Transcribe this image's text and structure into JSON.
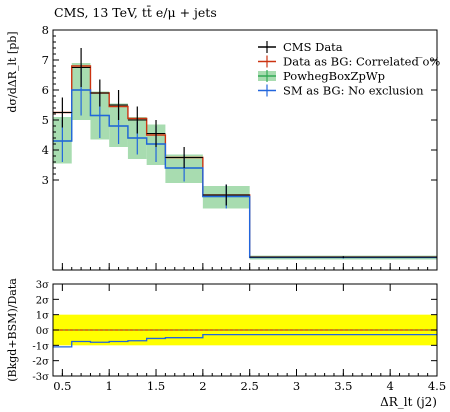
{
  "title": "CMS, 13 TeV, tt̄ e/μ + jets",
  "ylabel": "dσ/dΔR_lt [pb]",
  "ratio_ylabel": "(Bkgd+BSM)/Data",
  "xlabel": "ΔR_lt (j2)",
  "colors": {
    "data": "#000000",
    "correlated": "#cc3311",
    "powheg": "#33aa55",
    "powheg_band": "#a8dcb0",
    "sm": "#2266dd",
    "ratio_band": "#ffff00"
  },
  "chart_data": {
    "type": "line",
    "title": "CMS, 13 TeV, tt̄ e/μ + jets",
    "xlabel": "ΔR_lt (j2)",
    "ylabel": "dσ/dΔR_lt [pb]",
    "xlim": [
      0.4,
      4.5
    ],
    "ylim": [
      0,
      8
    ],
    "ratio_ylim": [
      -3,
      3
    ],
    "grid": false,
    "legend_position": "top-right",
    "bin_edges": [
      0.4,
      0.6,
      0.8,
      1.0,
      1.2,
      1.4,
      1.6,
      2.0,
      2.5,
      4.5
    ],
    "x_ticks": [
      "0.5",
      "1",
      "1.5",
      "2",
      "2.5",
      "3",
      "3.5",
      "4",
      "4.5"
    ],
    "y_ticks": [
      "3",
      "4",
      "5",
      "6",
      "7",
      "8"
    ],
    "ratio_ticks": [
      "3σ",
      "2σ",
      "1σ",
      "0σ",
      "-1σ",
      "-2σ",
      "-3σ"
    ],
    "series": [
      {
        "name": "CMS Data",
        "kind": "points",
        "values": [
          5.25,
          6.75,
          5.9,
          5.5,
          5.0,
          4.55,
          3.75,
          2.5,
          0.43
        ],
        "errors": [
          0.5,
          0.65,
          0.45,
          0.5,
          0.45,
          0.45,
          0.35,
          0.35,
          0.03
        ]
      },
      {
        "name": "Data as BG: Correlated ̅o%",
        "kind": "step",
        "values": [
          5.25,
          6.8,
          5.9,
          5.45,
          5.05,
          4.5,
          3.75,
          2.5,
          0.43
        ]
      },
      {
        "name": "PowhegBoxZpWp",
        "kind": "band",
        "values": [
          4.3,
          6.0,
          5.15,
          4.8,
          4.4,
          4.2,
          3.4,
          2.45,
          0.42
        ],
        "band_low": [
          3.55,
          5.0,
          4.35,
          4.1,
          3.7,
          3.5,
          2.9,
          2.05,
          0.35
        ],
        "band_high": [
          5.1,
          6.9,
          5.95,
          5.55,
          5.1,
          4.85,
          3.85,
          2.8,
          0.48
        ]
      },
      {
        "name": "SM as BG: No exclusion",
        "kind": "step",
        "values": [
          4.3,
          6.0,
          5.15,
          4.8,
          4.4,
          4.2,
          3.4,
          2.45,
          0.42
        ],
        "errors": [
          0.7,
          0.85,
          0.75,
          0.6,
          0.55,
          0.6,
          0.45,
          0.4,
          0.04
        ],
        "ratio_values": [
          -1.1,
          -0.75,
          -0.8,
          -0.75,
          -0.7,
          -0.55,
          -0.5,
          -0.3,
          -0.3
        ]
      }
    ]
  }
}
